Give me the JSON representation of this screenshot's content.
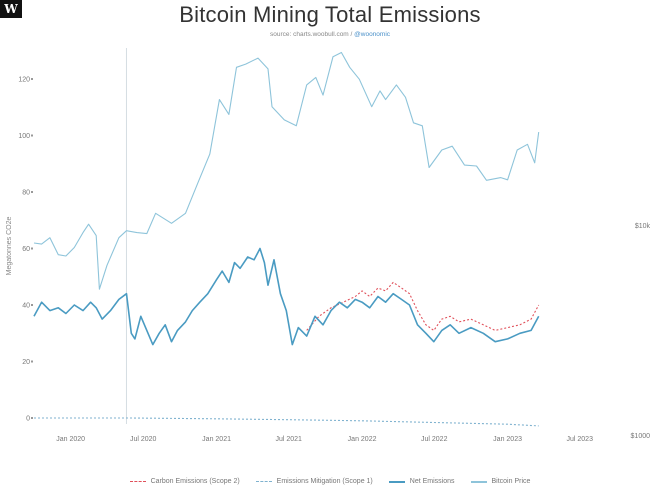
{
  "header": {
    "logo": "W",
    "title": "Bitcoin Mining Total Emissions",
    "source_prefix": "source: charts.woobull.com / ",
    "source_handle": "@woonomic"
  },
  "chart_data": {
    "type": "line",
    "title": "Bitcoin Mining Total Emissions",
    "ylabel": "Megatonnes CO2e",
    "ylim": [
      0,
      130
    ],
    "yticks": [
      0,
      20,
      40,
      60,
      80,
      100,
      120
    ],
    "ytick_labels": [
      "0",
      "20",
      "40",
      "60",
      "80",
      "100",
      "120"
    ],
    "xlim": [
      "2019-10-01",
      "2023-10-15"
    ],
    "xticks": [
      "2020-01-01",
      "2020-07-01",
      "2021-01-01",
      "2021-07-01",
      "2022-01-01",
      "2022-07-01",
      "2023-01-01",
      "2023-07-01"
    ],
    "xtick_labels": [
      "Jan 2020",
      "Jul 2020",
      "Jan 2021",
      "Jul 2021",
      "Jan 2022",
      "Jul 2022",
      "Jan 2023",
      "Jul 2023"
    ],
    "right_axis": {
      "scale": "log",
      "ticks": [
        1000,
        10000
      ],
      "tick_labels": [
        "$1000",
        "$10k"
      ]
    },
    "marker_line_x": "2020-05-20",
    "grid": false,
    "legend_position": "bottom",
    "series": [
      {
        "name": "Carbon Emissions (Scope 2)",
        "style": "dashed",
        "color": "#e0505a",
        "axis": "left",
        "points": [
          [
            "2021-08-15",
            31
          ],
          [
            "2021-09-15",
            36
          ],
          [
            "2021-10-15",
            39
          ],
          [
            "2021-11-15",
            41
          ],
          [
            "2021-12-15",
            43
          ],
          [
            "2022-01-01",
            45
          ],
          [
            "2022-01-20",
            43
          ],
          [
            "2022-02-10",
            46
          ],
          [
            "2022-03-01",
            45
          ],
          [
            "2022-03-20",
            48
          ],
          [
            "2022-04-10",
            46
          ],
          [
            "2022-04-30",
            44
          ],
          [
            "2022-05-20",
            38
          ],
          [
            "2022-06-10",
            33
          ],
          [
            "2022-06-30",
            31
          ],
          [
            "2022-07-20",
            35
          ],
          [
            "2022-08-10",
            36
          ],
          [
            "2022-09-01",
            34
          ],
          [
            "2022-10-01",
            35
          ],
          [
            "2022-11-01",
            33
          ],
          [
            "2022-12-01",
            31
          ],
          [
            "2023-01-01",
            32
          ],
          [
            "2023-02-01",
            33
          ],
          [
            "2023-03-01",
            35
          ],
          [
            "2023-03-20",
            40
          ]
        ]
      },
      {
        "name": "Emissions Mitigation (Scope 1)",
        "style": "dashed",
        "color": "#7fb2cf",
        "axis": "left",
        "points": [
          [
            "2019-10-01",
            0
          ],
          [
            "2020-06-01",
            0
          ],
          [
            "2021-01-01",
            -0.3
          ],
          [
            "2021-07-01",
            -0.6
          ],
          [
            "2022-01-01",
            -1.0
          ],
          [
            "2022-07-01",
            -1.6
          ],
          [
            "2023-01-01",
            -2.2
          ],
          [
            "2023-03-20",
            -2.8
          ]
        ]
      },
      {
        "name": "Net Emissions",
        "style": "solid",
        "color": "#4a9bc2",
        "axis": "left",
        "points": [
          [
            "2019-10-01",
            36
          ],
          [
            "2019-10-20",
            41
          ],
          [
            "2019-11-10",
            38
          ],
          [
            "2019-12-01",
            39
          ],
          [
            "2019-12-20",
            37
          ],
          [
            "2020-01-10",
            40
          ],
          [
            "2020-02-01",
            38
          ],
          [
            "2020-02-20",
            41
          ],
          [
            "2020-03-05",
            39
          ],
          [
            "2020-03-20",
            35
          ],
          [
            "2020-04-10",
            38
          ],
          [
            "2020-05-01",
            42
          ],
          [
            "2020-05-20",
            44
          ],
          [
            "2020-06-01",
            30
          ],
          [
            "2020-06-10",
            28
          ],
          [
            "2020-06-25",
            36
          ],
          [
            "2020-07-10",
            31
          ],
          [
            "2020-07-25",
            26
          ],
          [
            "2020-08-10",
            30
          ],
          [
            "2020-08-25",
            33
          ],
          [
            "2020-09-10",
            27
          ],
          [
            "2020-09-25",
            31
          ],
          [
            "2020-10-15",
            34
          ],
          [
            "2020-11-01",
            38
          ],
          [
            "2020-11-20",
            41
          ],
          [
            "2020-12-10",
            44
          ],
          [
            "2021-01-01",
            49
          ],
          [
            "2021-01-15",
            52
          ],
          [
            "2021-02-01",
            48
          ],
          [
            "2021-02-15",
            55
          ],
          [
            "2021-03-01",
            53
          ],
          [
            "2021-03-20",
            57
          ],
          [
            "2021-04-05",
            56
          ],
          [
            "2021-04-20",
            60
          ],
          [
            "2021-05-01",
            55
          ],
          [
            "2021-05-10",
            47
          ],
          [
            "2021-05-25",
            56
          ],
          [
            "2021-06-10",
            44
          ],
          [
            "2021-06-25",
            38
          ],
          [
            "2021-07-10",
            26
          ],
          [
            "2021-07-25",
            32
          ],
          [
            "2021-08-15",
            29
          ],
          [
            "2021-09-05",
            36
          ],
          [
            "2021-09-25",
            33
          ],
          [
            "2021-10-15",
            38
          ],
          [
            "2021-11-05",
            41
          ],
          [
            "2021-11-25",
            39
          ],
          [
            "2021-12-15",
            42
          ],
          [
            "2022-01-01",
            41
          ],
          [
            "2022-01-20",
            39
          ],
          [
            "2022-02-10",
            43
          ],
          [
            "2022-03-01",
            41
          ],
          [
            "2022-03-20",
            44
          ],
          [
            "2022-04-10",
            42
          ],
          [
            "2022-04-30",
            40
          ],
          [
            "2022-05-20",
            33
          ],
          [
            "2022-06-10",
            30
          ],
          [
            "2022-06-30",
            27
          ],
          [
            "2022-07-20",
            31
          ],
          [
            "2022-08-10",
            33
          ],
          [
            "2022-09-01",
            30
          ],
          [
            "2022-10-01",
            32
          ],
          [
            "2022-11-01",
            30
          ],
          [
            "2022-12-01",
            27
          ],
          [
            "2023-01-01",
            28
          ],
          [
            "2023-02-01",
            30
          ],
          [
            "2023-03-01",
            31
          ],
          [
            "2023-03-20",
            36
          ]
        ]
      },
      {
        "name": "Bitcoin Price",
        "style": "solid",
        "color": "#8ec4da",
        "axis": "right",
        "points": [
          [
            "2019-10-01",
            8300
          ],
          [
            "2019-10-20",
            8200
          ],
          [
            "2019-11-10",
            8800
          ],
          [
            "2019-12-01",
            7300
          ],
          [
            "2019-12-20",
            7200
          ],
          [
            "2020-01-10",
            7900
          ],
          [
            "2020-02-01",
            9300
          ],
          [
            "2020-02-15",
            10200
          ],
          [
            "2020-03-05",
            9000
          ],
          [
            "2020-03-13",
            5000
          ],
          [
            "2020-04-01",
            6500
          ],
          [
            "2020-05-01",
            8800
          ],
          [
            "2020-05-20",
            9500
          ],
          [
            "2020-06-15",
            9300
          ],
          [
            "2020-07-10",
            9200
          ],
          [
            "2020-08-01",
            11500
          ],
          [
            "2020-09-10",
            10300
          ],
          [
            "2020-10-15",
            11500
          ],
          [
            "2020-11-15",
            16000
          ],
          [
            "2020-12-15",
            22000
          ],
          [
            "2021-01-08",
            40000
          ],
          [
            "2021-02-01",
            34000
          ],
          [
            "2021-02-20",
            57000
          ],
          [
            "2021-03-15",
            59000
          ],
          [
            "2021-04-15",
            63000
          ],
          [
            "2021-05-10",
            56000
          ],
          [
            "2021-05-20",
            37000
          ],
          [
            "2021-06-20",
            32000
          ],
          [
            "2021-07-20",
            30000
          ],
          [
            "2021-08-15",
            47000
          ],
          [
            "2021-09-07",
            51000
          ],
          [
            "2021-09-25",
            42000
          ],
          [
            "2021-10-20",
            64000
          ],
          [
            "2021-11-10",
            67000
          ],
          [
            "2021-12-01",
            57000
          ],
          [
            "2021-12-25",
            50000
          ],
          [
            "2022-01-25",
            37000
          ],
          [
            "2022-02-15",
            44000
          ],
          [
            "2022-03-01",
            40000
          ],
          [
            "2022-03-28",
            47000
          ],
          [
            "2022-04-20",
            41000
          ],
          [
            "2022-05-10",
            31000
          ],
          [
            "2022-06-01",
            30000
          ],
          [
            "2022-06-18",
            19000
          ],
          [
            "2022-07-20",
            23000
          ],
          [
            "2022-08-15",
            24000
          ],
          [
            "2022-09-15",
            19500
          ],
          [
            "2022-10-15",
            19300
          ],
          [
            "2022-11-09",
            16500
          ],
          [
            "2022-12-15",
            17000
          ],
          [
            "2023-01-01",
            16600
          ],
          [
            "2023-01-25",
            23000
          ],
          [
            "2023-02-20",
            24500
          ],
          [
            "2023-03-10",
            20000
          ],
          [
            "2023-03-20",
            28000
          ]
        ]
      }
    ]
  },
  "legend": {
    "items": [
      {
        "label": "Carbon Emissions (Scope 2)",
        "color": "#e0505a",
        "style": "dashed"
      },
      {
        "label": "Emissions Mitigation (Scope 1)",
        "color": "#7fb2cf",
        "style": "dashed"
      },
      {
        "label": "Net Emissions",
        "color": "#4a9bc2",
        "style": "solid"
      },
      {
        "label": "Bitcoin Price",
        "color": "#8ec4da",
        "style": "solid"
      }
    ]
  }
}
